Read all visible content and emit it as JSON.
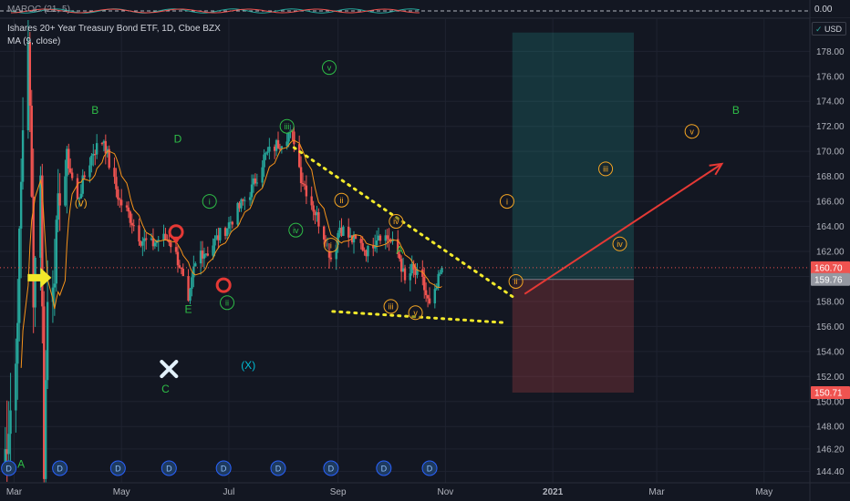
{
  "header": {
    "oscillator_label": "MAROC (21, 5)",
    "oscillator_value": "0.00",
    "symbol_title": "Ishares 20+ Year Treasury Bond ETF, 1D, Cboe BZX",
    "ma_label": "MA (9, close)",
    "currency": "USD"
  },
  "chart_data": {
    "type": "candlestick",
    "ylim": [
      143.5,
      180.5
    ],
    "yticks": [
      144.4,
      146.2,
      148,
      150,
      152,
      154,
      156,
      158,
      160,
      162,
      164,
      166,
      168,
      170,
      172,
      174,
      176,
      178
    ],
    "ytick_labels": [
      "144.40",
      "146.20",
      "148.00",
      "150.00",
      "152.00",
      "154.00",
      "156.00",
      "158.00",
      "160.00",
      "162.00",
      "164.00",
      "166.00",
      "168.00",
      "170.00",
      "172.00",
      "174.00",
      "176.00",
      "178.00"
    ],
    "xticks": [
      {
        "label": "Mar",
        "date": "2020-03-01"
      },
      {
        "label": "May",
        "date": "2020-05-01"
      },
      {
        "label": "Jul",
        "date": "2020-07-01"
      },
      {
        "label": "Sep",
        "date": "2020-09-01"
      },
      {
        "label": "Nov",
        "date": "2020-11-01"
      },
      {
        "label": "2021",
        "date": "2021-01-01"
      },
      {
        "label": "Mar",
        "date": "2021-03-01"
      },
      {
        "label": "May",
        "date": "2021-05-01"
      }
    ],
    "x_range": [
      "2020-02-22",
      "2021-05-27"
    ],
    "price_markers": [
      {
        "value": 160.7,
        "label": "160.70",
        "color": "#ef5350"
      },
      {
        "value": 159.76,
        "label": "159.76",
        "color": "#9598a1"
      },
      {
        "value": 150.71,
        "label": "150.71",
        "color": "#ef5350"
      }
    ],
    "last_price": 160.7,
    "position": {
      "start": "2020-12-09",
      "end": "2021-02-16",
      "entry": 159.76,
      "target": 179.5,
      "stop": 150.71,
      "profit_color": "rgba(38,166,154,0.22)",
      "loss_color": "rgba(239,83,80,0.22)"
    },
    "candle_anchors": [
      [
        "2020-02-24",
        144.8
      ],
      [
        "2020-03-02",
        153
      ],
      [
        "2020-03-06",
        172
      ],
      [
        "2020-03-09",
        179.5
      ],
      [
        "2020-03-12",
        159
      ],
      [
        "2020-03-16",
        169
      ],
      [
        "2020-03-18",
        145
      ],
      [
        "2020-03-20",
        158
      ],
      [
        "2020-03-24",
        161
      ],
      [
        "2020-03-27",
        167
      ],
      [
        "2020-04-01",
        169
      ],
      [
        "2020-04-06",
        166
      ],
      [
        "2020-04-10",
        168
      ],
      [
        "2020-04-15",
        170
      ],
      [
        "2020-04-21",
        171
      ],
      [
        "2020-04-24",
        169
      ],
      [
        "2020-04-30",
        166
      ],
      [
        "2020-05-05",
        165
      ],
      [
        "2020-05-12",
        163
      ],
      [
        "2020-05-18",
        162.5
      ],
      [
        "2020-05-22",
        163
      ],
      [
        "2020-05-28",
        163
      ],
      [
        "2020-06-03",
        161
      ],
      [
        "2020-06-08",
        157.5
      ],
      [
        "2020-06-11",
        160.5
      ],
      [
        "2020-06-15",
        162
      ],
      [
        "2020-06-19",
        162
      ],
      [
        "2020-06-24",
        163
      ],
      [
        "2020-06-30",
        164
      ],
      [
        "2020-07-07",
        165.5
      ],
      [
        "2020-07-14",
        167
      ],
      [
        "2020-07-21",
        169.5
      ],
      [
        "2020-07-28",
        170.5
      ],
      [
        "2020-08-04",
        171.5
      ],
      [
        "2020-08-07",
        171
      ],
      [
        "2020-08-11",
        168
      ],
      [
        "2020-08-18",
        165.5
      ],
      [
        "2020-08-25",
        163
      ],
      [
        "2020-08-28",
        161.5
      ],
      [
        "2020-09-02",
        164
      ],
      [
        "2020-09-08",
        163
      ],
      [
        "2020-09-14",
        162.5
      ],
      [
        "2020-09-18",
        162
      ],
      [
        "2020-09-24",
        163.5
      ],
      [
        "2020-09-30",
        163
      ],
      [
        "2020-10-06",
        161.5
      ],
      [
        "2020-10-09",
        159.5
      ],
      [
        "2020-10-13",
        160.5
      ],
      [
        "2020-10-16",
        160
      ],
      [
        "2020-10-19",
        159.5
      ],
      [
        "2020-10-23",
        157.5
      ],
      [
        "2020-10-26",
        158.5
      ],
      [
        "2020-10-30",
        160.7
      ]
    ],
    "ma_period": 9,
    "annotations": [
      {
        "text": "B",
        "date": "2020-04-16",
        "price": 173,
        "color": "#2ebd47",
        "shape": "text"
      },
      {
        "text": "D",
        "date": "2020-06-02",
        "price": 170.7,
        "color": "#2ebd47",
        "shape": "text"
      },
      {
        "text": "E",
        "date": "2020-06-08",
        "price": 157.1,
        "color": "#2ebd47",
        "shape": "text"
      },
      {
        "text": "C",
        "date": "2020-05-26",
        "price": 150.7,
        "color": "#2ebd47",
        "shape": "text"
      },
      {
        "text": "A",
        "date": "2020-03-05",
        "price": 144.7,
        "color": "#2ebd47",
        "shape": "text"
      },
      {
        "text": "A",
        "date": "2020-10-06",
        "price": 161.8,
        "color": "#2ebd47",
        "shape": "text"
      },
      {
        "text": "B",
        "date": "2021-04-15",
        "price": 173,
        "color": "#2ebd47",
        "shape": "text"
      },
      {
        "text": "(X)",
        "date": "2020-07-12",
        "price": 152.6,
        "color": "#00bcd4",
        "shape": "text"
      },
      {
        "text": "(v)",
        "date": "2020-04-08",
        "price": 165.6,
        "color": "#f5a623",
        "shape": "text"
      },
      {
        "text": "i",
        "date": "2020-06-20",
        "price": 166,
        "color": "#2ebd47",
        "shape": "circle"
      },
      {
        "text": "ii",
        "date": "2020-06-30",
        "price": 157.9,
        "color": "#2ebd47",
        "shape": "circle"
      },
      {
        "text": "iii",
        "date": "2020-08-03",
        "price": 172,
        "color": "#2ebd47",
        "shape": "circle"
      },
      {
        "text": "iv",
        "date": "2020-08-08",
        "price": 163.7,
        "color": "#2ebd47",
        "shape": "circle"
      },
      {
        "text": "v",
        "date": "2020-08-27",
        "price": 176.7,
        "color": "#2ebd47",
        "shape": "circle"
      },
      {
        "text": "ii",
        "date": "2020-09-03",
        "price": 166.1,
        "color": "#f5a623",
        "shape": "circle"
      },
      {
        "text": "i",
        "date": "2020-08-28",
        "price": 162.5,
        "color": "#f5a623",
        "shape": "circle"
      },
      {
        "text": "iv",
        "date": "2020-10-04",
        "price": 164.4,
        "color": "#f5a623",
        "shape": "circle"
      },
      {
        "text": "iii",
        "date": "2020-10-01",
        "price": 157.6,
        "color": "#f5a623",
        "shape": "circle"
      },
      {
        "text": "v",
        "date": "2020-10-15",
        "price": 157.1,
        "color": "#f5a623",
        "shape": "circle"
      },
      {
        "text": "ii",
        "date": "2020-12-11",
        "price": 159.6,
        "color": "#f5a623",
        "shape": "circle"
      },
      {
        "text": "i",
        "date": "2020-12-06",
        "price": 166,
        "color": "#f5a623",
        "shape": "circle"
      },
      {
        "text": "iii",
        "date": "2021-01-31",
        "price": 168.6,
        "color": "#f5a623",
        "shape": "circle"
      },
      {
        "text": "iv",
        "date": "2021-02-08",
        "price": 162.6,
        "color": "#f5a623",
        "shape": "circle"
      },
      {
        "text": "v",
        "date": "2021-03-21",
        "price": 171.6,
        "color": "#f5a623",
        "shape": "circle"
      }
    ],
    "trendlines": [
      {
        "from": [
          "2020-08-07",
          170.3
        ],
        "to": [
          "2020-12-10",
          158.3
        ],
        "color": "#f2e92a",
        "style": "dotted"
      },
      {
        "from": [
          "2020-08-29",
          157.2
        ],
        "to": [
          "2020-12-05",
          156.3
        ],
        "color": "#f2e92a",
        "style": "dotted"
      }
    ],
    "arrows": [
      {
        "from": [
          "2020-12-16",
          158.6
        ],
        "to": [
          "2021-04-07",
          169
        ],
        "color": "#e53935"
      }
    ],
    "markers": [
      {
        "type": "yellow-arrow",
        "date": "2020-03-17",
        "price": 159.9
      },
      {
        "type": "red-pin",
        "date": "2020-06-01",
        "price": 163.4
      },
      {
        "type": "red-ring",
        "date": "2020-06-28",
        "price": 159.3
      },
      {
        "type": "cross",
        "date": "2020-05-28",
        "price": 152.6
      }
    ],
    "event_dates": [
      "2020-02-27",
      "2020-03-27",
      "2020-04-29",
      "2020-05-28",
      "2020-06-28",
      "2020-07-29",
      "2020-08-28",
      "2020-09-27",
      "2020-10-23"
    ],
    "event_letter": "D"
  }
}
